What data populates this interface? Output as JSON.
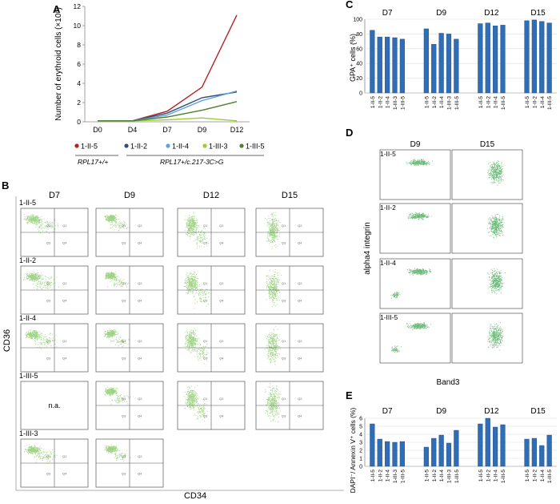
{
  "panel_labels": {
    "a": "A",
    "b": "B",
    "c": "C",
    "d": "D",
    "e": "E"
  },
  "genotypes": {
    "wt": "RPL17+/+",
    "mut": "RPL17+/c.217-3C>G"
  },
  "chart_data": [
    {
      "panel": "A",
      "type": "line",
      "ylabel": "Number of erythroid cells (×10⁶)",
      "x": [
        "D0",
        "D4",
        "D7",
        "D9",
        "D12"
      ],
      "ylim": [
        0,
        12
      ],
      "yticks": [
        0,
        2,
        4,
        6,
        8,
        10,
        12
      ],
      "grid": false,
      "legend_position": "bottom",
      "series": [
        {
          "name": "1-II-5",
          "color": "#b22222",
          "values": [
            0.1,
            0.1,
            1.1,
            3.6,
            11.1
          ]
        },
        {
          "name": "1-II-2",
          "color": "#2f4f7f",
          "values": [
            0.1,
            0.1,
            0.9,
            2.5,
            3.1
          ]
        },
        {
          "name": "1-II-4",
          "color": "#5ba3d9",
          "values": [
            0.1,
            0.1,
            0.7,
            2.2,
            3.2
          ]
        },
        {
          "name": "1-III-3",
          "color": "#9acd32",
          "values": [
            0.1,
            0.1,
            0.2,
            0.4,
            0.1
          ]
        },
        {
          "name": "1-III-5",
          "color": "#4f7f2f",
          "values": [
            0.1,
            0.1,
            0.5,
            1.2,
            2.1
          ]
        }
      ]
    },
    {
      "panel": "C",
      "type": "bar",
      "ylabel": "GPA⁺ cells (%)",
      "ylim": [
        0,
        100
      ],
      "yticks": [
        0,
        20,
        40,
        60,
        80,
        100
      ],
      "color": "#2f6db5",
      "groups": [
        {
          "label": "D7",
          "categories": [
            "1-II-5",
            "1-II-2",
            "1-II-4",
            "1-III-3",
            "1-III-5"
          ],
          "values": [
            85,
            76,
            76,
            75,
            73
          ]
        },
        {
          "label": "D9",
          "categories": [
            "1-II-5",
            "1-II-2",
            "1-II-4",
            "1-III-3",
            "1-III-5"
          ],
          "values": [
            87,
            66,
            81,
            80,
            73
          ]
        },
        {
          "label": "D12",
          "categories": [
            "1-II-5",
            "1-II-2",
            "1-II-4",
            "1-III-5"
          ],
          "values": [
            94,
            95,
            91,
            92
          ]
        },
        {
          "label": "D15",
          "categories": [
            "1-II-5",
            "1-II-2",
            "1-II-4",
            "1-III-5"
          ],
          "values": [
            98,
            99,
            97,
            95
          ]
        }
      ]
    },
    {
      "panel": "E",
      "type": "bar",
      "ylabel": "DAPI⁻/ Annexin V⁺ cells (%)",
      "ylim": [
        0,
        6
      ],
      "yticks": [
        0,
        1,
        2,
        3,
        4,
        5,
        6
      ],
      "color": "#2f6db5",
      "groups": [
        {
          "label": "D7",
          "categories": [
            "1-II-5",
            "1-II-2",
            "1-II-4",
            "1-III-3",
            "1-III-5"
          ],
          "values": [
            5.3,
            3.4,
            3.1,
            3.0,
            3.1
          ]
        },
        {
          "label": "D9",
          "categories": [
            "1-II-5",
            "1-II-2",
            "1-II-4",
            "1-III-3",
            "1-III-5"
          ],
          "values": [
            2.4,
            3.5,
            3.9,
            2.9,
            4.5
          ]
        },
        {
          "label": "D12",
          "categories": [
            "1-II-5",
            "1-II-2",
            "1-II-4",
            "1-III-5"
          ],
          "values": [
            5.3,
            6.0,
            4.9,
            5.2
          ]
        },
        {
          "label": "D15",
          "categories": [
            "1-II-5",
            "1-II-2",
            "1-II-4",
            "1-III-5"
          ],
          "values": [
            3.4,
            3.5,
            2.6,
            3.9
          ]
        }
      ]
    }
  ],
  "flow_b": {
    "xlabel": "CD34",
    "ylabel": "CD36",
    "days": [
      "D7",
      "D9",
      "D12",
      "D15"
    ],
    "quadrants": [
      "Q1",
      "Q2",
      "Q3",
      "Q4"
    ],
    "samples": [
      "1-II-5",
      "1-II-2",
      "1-II-4",
      "1-III-5",
      "1-III-3"
    ],
    "na_label": "n.a.",
    "point_color": "#7cc45a"
  },
  "flow_d": {
    "xlabel": "Band3",
    "ylabel": "alpha4 integrin",
    "days": [
      "D9",
      "D15"
    ],
    "samples": [
      "1-II-5",
      "1-II-2",
      "1-II-4",
      "1-III-5"
    ],
    "point_color": "#3aa34a"
  }
}
